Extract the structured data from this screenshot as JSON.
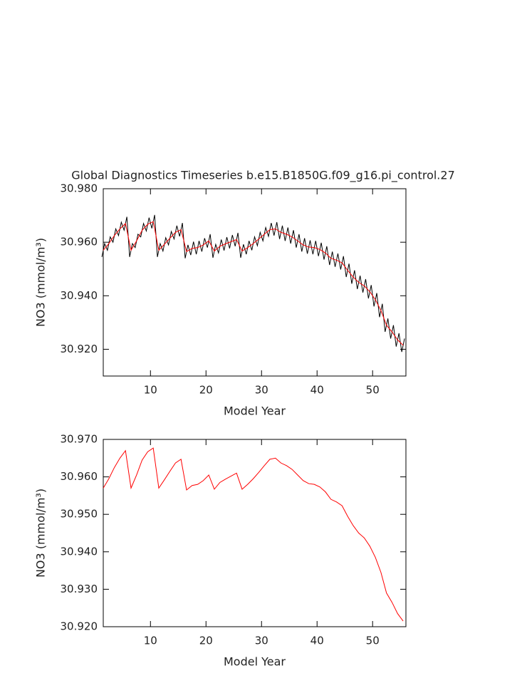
{
  "chart_data": [
    {
      "type": "line",
      "title": "Global Diagnostics Timeseries b.e15.B1850G.f09_g16.pi_control.27",
      "xlabel": "Model Year",
      "ylabel": "NO3 (mmol/m³)",
      "xlim": [
        1.5,
        56
      ],
      "xticks": [
        10,
        20,
        30,
        40,
        50
      ],
      "ylim": [
        30.91,
        30.98
      ],
      "yticks": [
        {
          "value": 30.92,
          "label": "30.920"
        },
        {
          "value": 30.94,
          "label": "30.940"
        },
        {
          "value": 30.96,
          "label": "30.960"
        },
        {
          "value": 30.98,
          "label": "30.980"
        }
      ],
      "grid": false,
      "series": [
        {
          "color": "#000000",
          "x": [
            1.25,
            1.75,
            2.25,
            2.75,
            3.25,
            3.75,
            4.25,
            4.75,
            5.25,
            5.75,
            6.25,
            6.75,
            7.25,
            7.75,
            8.25,
            8.75,
            9.25,
            9.75,
            10.25,
            10.75,
            11.25,
            11.75,
            12.25,
            12.75,
            13.25,
            13.75,
            14.25,
            14.75,
            15.25,
            15.75,
            16.25,
            16.75,
            17.25,
            17.75,
            18.25,
            18.75,
            19.25,
            19.75,
            20.25,
            20.75,
            21.25,
            21.75,
            22.25,
            22.75,
            23.25,
            23.75,
            24.25,
            24.75,
            25.25,
            25.75,
            26.25,
            26.75,
            27.25,
            27.75,
            28.25,
            28.75,
            29.25,
            29.75,
            30.25,
            30.75,
            31.25,
            31.75,
            32.25,
            32.75,
            33.25,
            33.75,
            34.25,
            34.75,
            35.25,
            35.75,
            36.25,
            36.75,
            37.25,
            37.75,
            38.25,
            38.75,
            39.25,
            39.75,
            40.25,
            40.75,
            41.25,
            41.75,
            42.25,
            42.75,
            43.25,
            43.75,
            44.25,
            44.75,
            45.25,
            45.75,
            46.25,
            46.75,
            47.25,
            47.75,
            48.25,
            48.75,
            49.25,
            49.75,
            50.25,
            50.75,
            51.25,
            51.75,
            52.25,
            52.75,
            53.25,
            53.75,
            54.25,
            54.75,
            55.25,
            55.75
          ],
          "values": [
            30.9545,
            30.9595,
            30.957,
            30.962,
            30.96,
            30.965,
            30.9625,
            30.9675,
            30.9645,
            30.9695,
            30.9545,
            30.9595,
            30.958,
            30.963,
            30.962,
            30.967,
            30.9642,
            30.9692,
            30.9652,
            30.9702,
            30.9545,
            30.9595,
            30.9567,
            30.9617,
            30.959,
            30.964,
            30.9612,
            30.9662,
            30.9622,
            30.9672,
            30.954,
            30.959,
            30.9552,
            30.9602,
            30.9555,
            30.9605,
            30.9565,
            30.9615,
            30.958,
            30.963,
            30.9542,
            30.9592,
            30.956,
            30.961,
            30.9569,
            30.9619,
            30.9577,
            30.9627,
            30.9585,
            30.9635,
            30.9542,
            30.9592,
            30.9555,
            30.9605,
            30.957,
            30.962,
            30.9587,
            30.9637,
            30.9605,
            30.9655,
            30.9622,
            30.9672,
            30.9625,
            30.9675,
            30.9612,
            30.9662,
            30.9605,
            30.9655,
            30.9595,
            30.9645,
            30.958,
            30.963,
            30.9565,
            30.9615,
            30.9557,
            30.9607,
            30.9555,
            30.9605,
            30.9548,
            30.9598,
            30.9535,
            30.9585,
            30.9515,
            30.9565,
            30.9508,
            30.9558,
            30.9498,
            30.9548,
            30.947,
            30.952,
            30.9445,
            30.9495,
            30.9425,
            30.9475,
            30.9412,
            30.9462,
            30.939,
            30.944,
            30.936,
            30.941,
            30.932,
            30.937,
            30.9265,
            30.9315,
            30.924,
            30.929,
            30.921,
            30.926,
            30.919,
            30.924
          ]
        },
        {
          "color": "#ff0000",
          "x": [
            1.5,
            2.5,
            3.5,
            4.5,
            5.5,
            6.5,
            7.5,
            8.5,
            9.5,
            10.5,
            11.5,
            12.5,
            13.5,
            14.5,
            15.5,
            16.5,
            17.5,
            18.5,
            19.5,
            20.5,
            21.5,
            22.5,
            23.5,
            24.5,
            25.5,
            26.5,
            27.5,
            28.5,
            29.5,
            30.5,
            31.5,
            32.5,
            33.5,
            34.5,
            35.5,
            36.5,
            37.5,
            38.5,
            39.5,
            40.5,
            41.5,
            42.5,
            43.5,
            44.5,
            45.5,
            46.5,
            47.5,
            48.5,
            49.5,
            50.5,
            51.5,
            52.5,
            53.5,
            54.5,
            55.5
          ],
          "values": [
            30.957,
            30.9595,
            30.9625,
            30.965,
            30.967,
            30.957,
            30.9605,
            30.9645,
            30.9667,
            30.9677,
            30.957,
            30.9592,
            30.9615,
            30.9637,
            30.9647,
            30.9565,
            30.9577,
            30.958,
            30.959,
            30.9605,
            30.9567,
            30.9585,
            30.9594,
            30.9602,
            30.961,
            30.9567,
            30.958,
            30.9595,
            30.9612,
            30.963,
            30.9647,
            30.965,
            30.9637,
            30.963,
            30.962,
            30.9605,
            30.959,
            30.9582,
            30.958,
            30.9573,
            30.956,
            30.954,
            30.9533,
            30.9523,
            30.9495,
            30.947,
            30.945,
            30.9437,
            30.9415,
            30.9385,
            30.9345,
            30.929,
            30.9265,
            30.9235,
            30.9215
          ]
        }
      ]
    },
    {
      "type": "line",
      "xlabel": "Model Year",
      "ylabel": "NO3 (mmol/m³)",
      "xlim": [
        1.5,
        56
      ],
      "xticks": [
        10,
        20,
        30,
        40,
        50
      ],
      "ylim": [
        30.92,
        30.97
      ],
      "yticks": [
        {
          "value": 30.92,
          "label": "30.920"
        },
        {
          "value": 30.93,
          "label": "30.930"
        },
        {
          "value": 30.94,
          "label": "30.940"
        },
        {
          "value": 30.95,
          "label": "30.950"
        },
        {
          "value": 30.96,
          "label": "30.960"
        },
        {
          "value": 30.97,
          "label": "30.970"
        }
      ],
      "grid": false,
      "series": [
        {
          "color": "#ff0000",
          "x": [
            1.5,
            2.5,
            3.5,
            4.5,
            5.5,
            6.5,
            7.5,
            8.5,
            9.5,
            10.5,
            11.5,
            12.5,
            13.5,
            14.5,
            15.5,
            16.5,
            17.5,
            18.5,
            19.5,
            20.5,
            21.5,
            22.5,
            23.5,
            24.5,
            25.5,
            26.5,
            27.5,
            28.5,
            29.5,
            30.5,
            31.5,
            32.5,
            33.5,
            34.5,
            35.5,
            36.5,
            37.5,
            38.5,
            39.5,
            40.5,
            41.5,
            42.5,
            43.5,
            44.5,
            45.5,
            46.5,
            47.5,
            48.5,
            49.5,
            50.5,
            51.5,
            52.5,
            53.5,
            54.5,
            55.5
          ],
          "values": [
            30.957,
            30.9595,
            30.9625,
            30.965,
            30.967,
            30.957,
            30.9605,
            30.9645,
            30.9667,
            30.9677,
            30.957,
            30.9592,
            30.9615,
            30.9637,
            30.9647,
            30.9565,
            30.9577,
            30.958,
            30.959,
            30.9605,
            30.9567,
            30.9585,
            30.9594,
            30.9602,
            30.961,
            30.9567,
            30.958,
            30.9595,
            30.9612,
            30.963,
            30.9647,
            30.965,
            30.9637,
            30.963,
            30.962,
            30.9605,
            30.959,
            30.9582,
            30.958,
            30.9573,
            30.956,
            30.954,
            30.9533,
            30.9523,
            30.9495,
            30.947,
            30.945,
            30.9437,
            30.9415,
            30.9385,
            30.9345,
            30.929,
            30.9265,
            30.9235,
            30.9215
          ]
        }
      ]
    }
  ]
}
